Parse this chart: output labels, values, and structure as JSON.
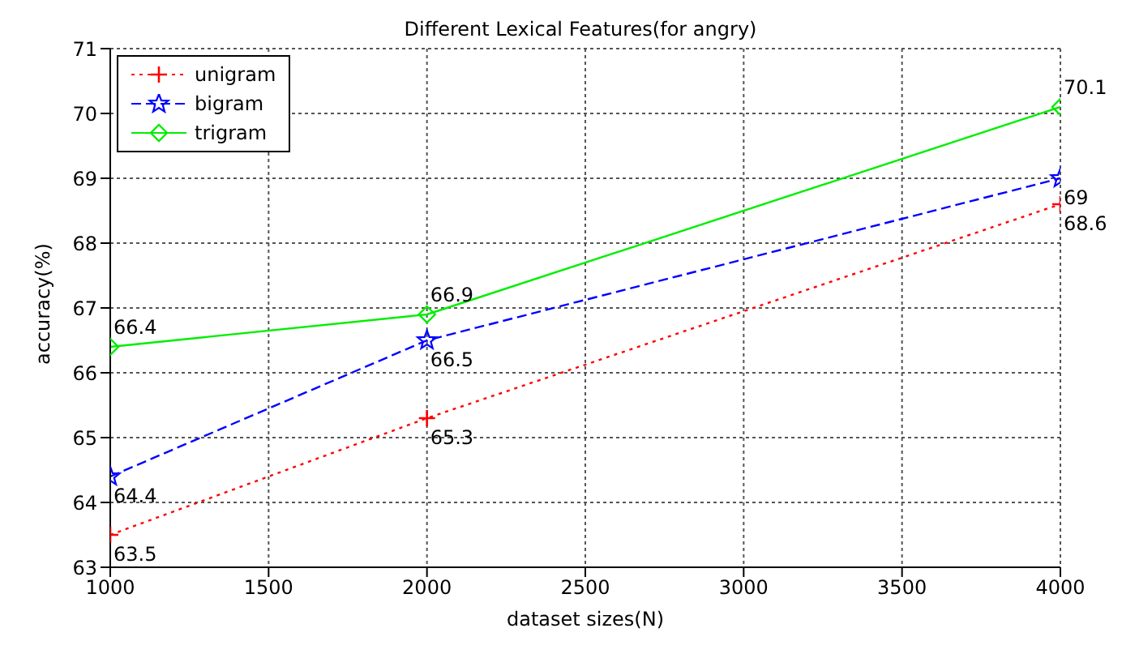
{
  "chart_data": {
    "type": "line",
    "title": "Different Lexical Features(for angry)",
    "xlabel": "dataset sizes(N)",
    "ylabel": "accuracy(%)",
    "x": [
      1000,
      2000,
      4000
    ],
    "series": [
      {
        "name": "unigram",
        "color": "#ff0000",
        "values": [
          63.5,
          65.3,
          68.6
        ],
        "marker": "cross",
        "line_style": "dotted"
      },
      {
        "name": "bigram",
        "color": "#0000ff",
        "values": [
          64.4,
          66.5,
          69
        ],
        "marker": "star",
        "line_style": "dashed"
      },
      {
        "name": "trigram",
        "color": "#00ee00",
        "values": [
          66.4,
          66.9,
          70.1
        ],
        "marker": "diamond",
        "line_style": "solid"
      }
    ],
    "xlim": [
      1000,
      4000
    ],
    "xticks": [
      1000,
      1500,
      2000,
      2500,
      3000,
      3500,
      4000
    ],
    "ylim": [
      63,
      71
    ],
    "yticks": [
      63,
      64,
      65,
      66,
      67,
      68,
      69,
      70,
      71
    ],
    "grid": true,
    "legend": "top left",
    "data_labels": true
  }
}
